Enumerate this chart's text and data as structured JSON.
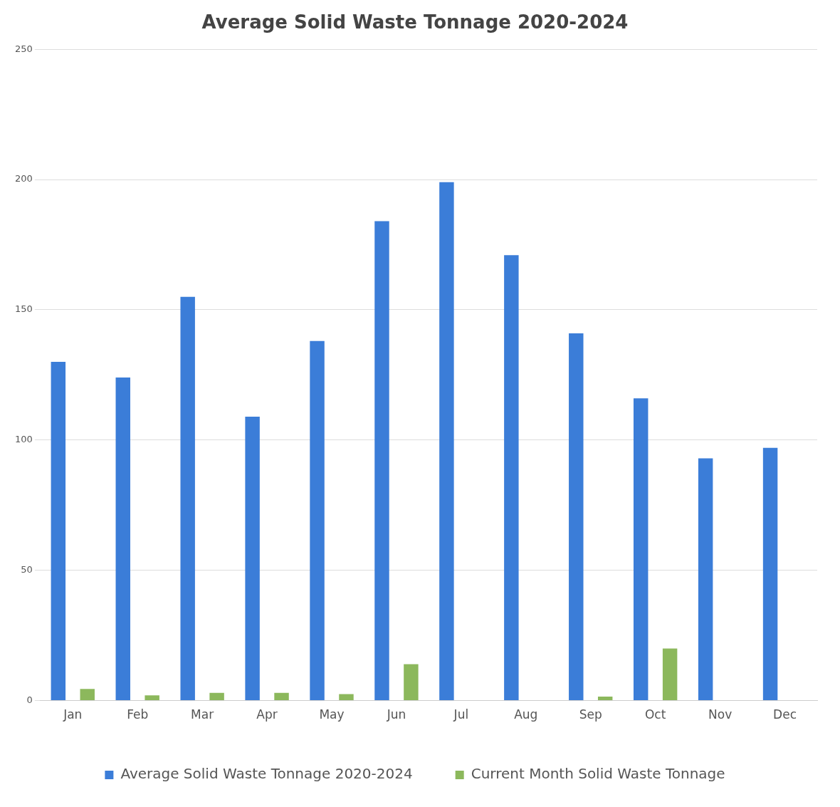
{
  "chart_data": {
    "type": "bar",
    "title": "Average Solid Waste Tonnage 2020-2024",
    "categories": [
      "Jan",
      "Feb",
      "Mar",
      "Apr",
      "May",
      "Jun",
      "Jul",
      "Aug",
      "Sep",
      "Oct",
      "Nov",
      "Dec"
    ],
    "series": [
      {
        "name": "Average Solid Waste Tonnage 2020-2024",
        "color": "#3b7dd8",
        "values": [
          130,
          124,
          155,
          109,
          138,
          184,
          199,
          171,
          141,
          116,
          93,
          97
        ]
      },
      {
        "name": "Current Month Solid Waste Tonnage",
        "color": "#8cb85c",
        "values": [
          4.5,
          2,
          3,
          3,
          2.5,
          14,
          null,
          null,
          1.5,
          20,
          null,
          null
        ]
      }
    ],
    "ylim": [
      0,
      250
    ],
    "yticks": [
      0,
      50,
      100,
      150,
      200,
      250
    ],
    "grid": "y",
    "legend": "bottom"
  }
}
